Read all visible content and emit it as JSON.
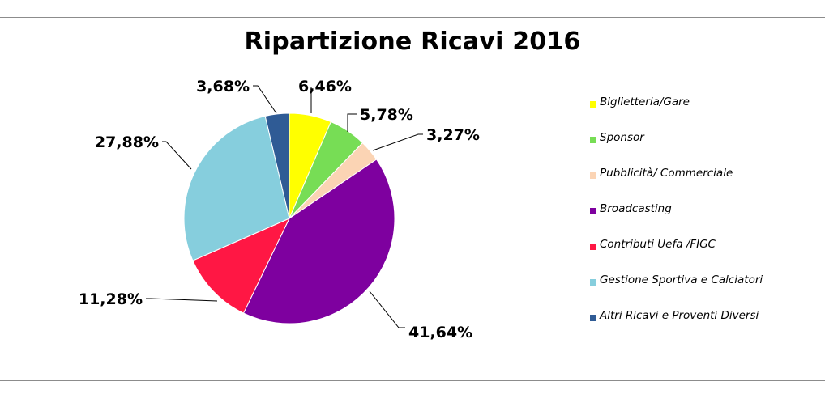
{
  "chart_data": {
    "type": "pie",
    "title": "Ripartizione Ricavi 2016",
    "slices": [
      {
        "label": "Biglietteria/Gare",
        "value": 6.46,
        "display": "6,46%",
        "color": "#FFFF00"
      },
      {
        "label": "Sponsor",
        "value": 5.78,
        "display": "5,78%",
        "color": "#77DD55"
      },
      {
        "label": "Pubblicità/ Commerciale",
        "value": 3.27,
        "display": "3,27%",
        "color": "#FBD4B4"
      },
      {
        "label": "Broadcasting",
        "value": 41.64,
        "display": "41,64%",
        "color": "#7E009F"
      },
      {
        "label": "Contributi Uefa /FIGC",
        "value": 11.28,
        "display": "11,28%",
        "color": "#FF1744"
      },
      {
        "label": "Gestione Sportiva e Calciatori",
        "value": 27.88,
        "display": "27,88%",
        "color": "#86CEDD"
      },
      {
        "label": "Altri Ricavi e Proventi Diversi",
        "value": 3.68,
        "display": "3,68%",
        "color": "#2F5B95"
      }
    ],
    "legend_position": "right"
  }
}
